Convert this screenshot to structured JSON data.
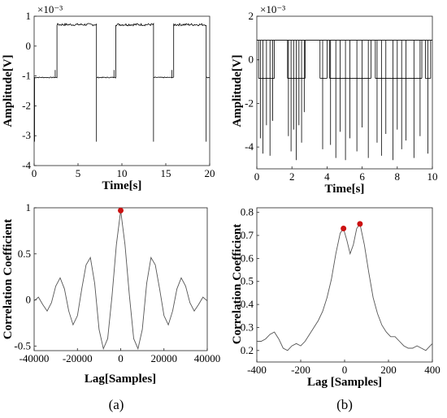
{
  "chart_data": [
    {
      "id": "top-left",
      "type": "line",
      "xlabel": "Time[s]",
      "ylabel": "Amplitude[V]",
      "exponent_label": "×10⁻³",
      "xlim": [
        0,
        20
      ],
      "ylim": [
        -4,
        1
      ],
      "xticks": [
        0,
        5,
        10,
        15,
        20
      ],
      "yticks": [
        -4,
        -3,
        -2,
        -1,
        0,
        1
      ],
      "segments": [
        {
          "x0": 0.0,
          "x1": 2.6,
          "level": -1.05
        },
        {
          "x0": 2.6,
          "x1": 7.1,
          "level": 0.72
        },
        {
          "x0": 7.1,
          "x1": 9.3,
          "level": -1.05
        },
        {
          "x0": 9.3,
          "x1": 13.6,
          "level": 0.72
        },
        {
          "x0": 13.6,
          "x1": 15.9,
          "level": -1.05
        },
        {
          "x0": 15.9,
          "x1": 19.6,
          "level": 0.72
        },
        {
          "x0": 19.6,
          "x1": 20.0,
          "level": -1.05
        }
      ],
      "spikes": [
        {
          "x": 0.05,
          "y": -3.2
        },
        {
          "x": 7.1,
          "y": -3.2
        },
        {
          "x": 13.6,
          "y": -3.2
        },
        {
          "x": 19.6,
          "y": -3.2
        }
      ],
      "steps": [
        {
          "x": 2.4,
          "y": -0.8
        },
        {
          "x": 9.1,
          "y": -0.8
        },
        {
          "x": 15.7,
          "y": -0.8
        }
      ]
    },
    {
      "id": "top-right",
      "type": "line",
      "xlabel": "Time[s]",
      "ylabel": "Amplitude[V]",
      "exponent_label": "×10⁻³",
      "xlim": [
        0,
        10
      ],
      "ylim": [
        -5,
        2
      ],
      "xticks": [
        0,
        2,
        4,
        6,
        8,
        10
      ],
      "yticks": [
        -4,
        -2,
        0,
        2
      ],
      "high_level": 0.9,
      "low_level": -0.85,
      "dips": [
        {
          "x": 0.2,
          "y": -3.6
        },
        {
          "x": 0.35,
          "y": -4.3
        },
        {
          "x": 0.55,
          "y": -3.0
        },
        {
          "x": 0.75,
          "y": -4.4
        },
        {
          "x": 0.9,
          "y": -2.8
        },
        {
          "x": 1.8,
          "y": -3.5
        },
        {
          "x": 1.95,
          "y": -4.2
        },
        {
          "x": 2.1,
          "y": -3.2
        },
        {
          "x": 2.25,
          "y": -4.6
        },
        {
          "x": 2.4,
          "y": -3.0
        },
        {
          "x": 2.55,
          "y": -3.8
        },
        {
          "x": 2.7,
          "y": -2.4
        },
        {
          "x": 3.75,
          "y": -4.1
        },
        {
          "x": 4.2,
          "y": -3.9
        },
        {
          "x": 4.5,
          "y": -4.5
        },
        {
          "x": 4.75,
          "y": -3.3
        },
        {
          "x": 5.05,
          "y": -4.6
        },
        {
          "x": 5.3,
          "y": -3.6
        },
        {
          "x": 5.7,
          "y": -4.2
        },
        {
          "x": 6.0,
          "y": -3.1
        },
        {
          "x": 6.35,
          "y": -4.5
        },
        {
          "x": 6.85,
          "y": -3.8
        },
        {
          "x": 7.1,
          "y": -4.4
        },
        {
          "x": 7.35,
          "y": -3.4
        },
        {
          "x": 7.75,
          "y": -4.6
        },
        {
          "x": 8.0,
          "y": -3.2
        },
        {
          "x": 8.25,
          "y": -4.1
        },
        {
          "x": 8.5,
          "y": -3.7
        },
        {
          "x": 8.95,
          "y": -4.5
        },
        {
          "x": 9.3,
          "y": -3.5
        },
        {
          "x": 9.75,
          "y": -4.3
        }
      ],
      "low_intervals": [
        [
          0.1,
          1.0
        ],
        [
          1.75,
          2.75
        ],
        [
          3.6,
          4.0
        ],
        [
          4.15,
          6.5
        ],
        [
          6.75,
          9.4
        ],
        [
          9.6,
          9.9
        ]
      ]
    },
    {
      "id": "bottom-left",
      "type": "line",
      "xlabel": "Lag[Samples]",
      "ylabel": "Correlation Coefficient",
      "xlim": [
        -40000,
        40000
      ],
      "ylim": [
        -0.55,
        1.0
      ],
      "xticks": [
        -40000,
        -20000,
        0,
        20000,
        40000
      ],
      "yticks": [
        -0.5,
        0,
        0.5,
        1
      ],
      "peak": {
        "x": 0,
        "y": 0.97
      },
      "curve": [
        [
          -40000,
          -0.01
        ],
        [
          -38000,
          0.03
        ],
        [
          -36000,
          -0.05
        ],
        [
          -34000,
          -0.12
        ],
        [
          -32000,
          -0.03
        ],
        [
          -30000,
          0.15
        ],
        [
          -28000,
          0.24
        ],
        [
          -26000,
          0.12
        ],
        [
          -24000,
          -0.12
        ],
        [
          -22000,
          -0.27
        ],
        [
          -20000,
          -0.17
        ],
        [
          -18000,
          0.12
        ],
        [
          -16000,
          0.38
        ],
        [
          -14000,
          0.46
        ],
        [
          -12000,
          0.18
        ],
        [
          -10000,
          -0.32
        ],
        [
          -8000,
          -0.53
        ],
        [
          -6000,
          -0.42
        ],
        [
          -4000,
          0.05
        ],
        [
          -2000,
          0.6
        ],
        [
          0,
          0.97
        ],
        [
          2000,
          0.6
        ],
        [
          4000,
          0.05
        ],
        [
          6000,
          -0.42
        ],
        [
          8000,
          -0.53
        ],
        [
          10000,
          -0.32
        ],
        [
          12000,
          0.18
        ],
        [
          14000,
          0.46
        ],
        [
          16000,
          0.38
        ],
        [
          18000,
          0.12
        ],
        [
          20000,
          -0.17
        ],
        [
          22000,
          -0.27
        ],
        [
          24000,
          -0.12
        ],
        [
          26000,
          0.12
        ],
        [
          28000,
          0.24
        ],
        [
          30000,
          0.15
        ],
        [
          32000,
          -0.03
        ],
        [
          34000,
          -0.12
        ],
        [
          36000,
          -0.05
        ],
        [
          38000,
          0.03
        ],
        [
          40000,
          -0.01
        ]
      ]
    },
    {
      "id": "bottom-right",
      "type": "line",
      "xlabel": "Lag [Samples]",
      "ylabel": "Correlation Coefficient",
      "xlim": [
        -400,
        400
      ],
      "ylim": [
        0.15,
        0.82
      ],
      "xticks": [
        -400,
        -200,
        0,
        200,
        400
      ],
      "yticks": [
        0.2,
        0.3,
        0.4,
        0.5,
        0.6,
        0.7,
        0.8
      ],
      "peaks": [
        {
          "x": -5,
          "y": 0.73
        },
        {
          "x": 70,
          "y": 0.75
        }
      ],
      "curve": [
        [
          -400,
          0.24
        ],
        [
          -380,
          0.24
        ],
        [
          -360,
          0.25
        ],
        [
          -340,
          0.27
        ],
        [
          -320,
          0.28
        ],
        [
          -300,
          0.25
        ],
        [
          -280,
          0.21
        ],
        [
          -260,
          0.2
        ],
        [
          -240,
          0.22
        ],
        [
          -220,
          0.23
        ],
        [
          -200,
          0.22
        ],
        [
          -180,
          0.24
        ],
        [
          -160,
          0.27
        ],
        [
          -140,
          0.3
        ],
        [
          -120,
          0.33
        ],
        [
          -100,
          0.37
        ],
        [
          -80,
          0.43
        ],
        [
          -60,
          0.51
        ],
        [
          -40,
          0.62
        ],
        [
          -20,
          0.71
        ],
        [
          -5,
          0.73
        ],
        [
          10,
          0.68
        ],
        [
          25,
          0.62
        ],
        [
          40,
          0.66
        ],
        [
          55,
          0.73
        ],
        [
          70,
          0.75
        ],
        [
          90,
          0.66
        ],
        [
          110,
          0.54
        ],
        [
          130,
          0.43
        ],
        [
          150,
          0.36
        ],
        [
          170,
          0.31
        ],
        [
          190,
          0.28
        ],
        [
          210,
          0.26
        ],
        [
          230,
          0.26
        ],
        [
          250,
          0.24
        ],
        [
          270,
          0.22
        ],
        [
          290,
          0.21
        ],
        [
          310,
          0.21
        ],
        [
          330,
          0.22
        ],
        [
          350,
          0.21
        ],
        [
          370,
          0.2
        ],
        [
          390,
          0.22
        ],
        [
          400,
          0.23
        ]
      ]
    }
  ],
  "panel_labels": {
    "a": "(a)",
    "b": "(b)"
  },
  "colors": {
    "peak_marker": "#cc1111",
    "trace": "#000000",
    "correlation_curve": "#555555"
  }
}
